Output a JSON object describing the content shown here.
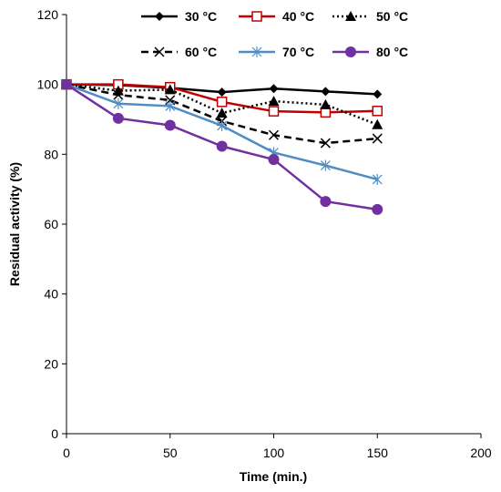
{
  "chart_data": {
    "type": "line",
    "title": "",
    "xlabel": "Time (min.)",
    "ylabel": "Residual activity (%)",
    "xlim": [
      0,
      200
    ],
    "ylim": [
      0,
      120
    ],
    "xticks": [
      0,
      50,
      100,
      150,
      200
    ],
    "yticks": [
      0,
      20,
      40,
      60,
      80,
      100,
      120
    ],
    "grid": false,
    "legend_position": "top-right",
    "x": [
      0,
      25,
      50,
      75,
      100,
      125,
      150
    ],
    "series": [
      {
        "name": "30 °C",
        "values": [
          100,
          99.8,
          99.0,
          97.8,
          98.8,
          98.0,
          97.2
        ],
        "color": "#000000",
        "marker": "diamond-filled",
        "dash": "solid"
      },
      {
        "name": "40 °C",
        "values": [
          100,
          100.0,
          99.2,
          95.0,
          92.3,
          92.0,
          92.4
        ],
        "color": "#C00000",
        "marker": "square-open",
        "dash": "solid"
      },
      {
        "name": "50 °C",
        "values": [
          100,
          98.2,
          98.5,
          91.8,
          95.2,
          94.2,
          88.5
        ],
        "color": "#000000",
        "marker": "triangle-filled",
        "dash": "dotted"
      },
      {
        "name": "60 °C",
        "values": [
          100,
          97.0,
          95.5,
          89.5,
          85.5,
          83.2,
          84.5
        ],
        "color": "#000000",
        "marker": "x",
        "dash": "dashed"
      },
      {
        "name": "70 °C",
        "values": [
          100,
          94.5,
          93.8,
          88.2,
          80.5,
          76.8,
          72.8
        ],
        "color": "#4F8DC4",
        "marker": "asterisk",
        "dash": "solid"
      },
      {
        "name": "80 °C",
        "values": [
          100,
          90.3,
          88.3,
          82.3,
          78.5,
          66.5,
          64.2
        ],
        "color": "#7030A0",
        "marker": "circle-filled",
        "dash": "solid"
      }
    ]
  }
}
